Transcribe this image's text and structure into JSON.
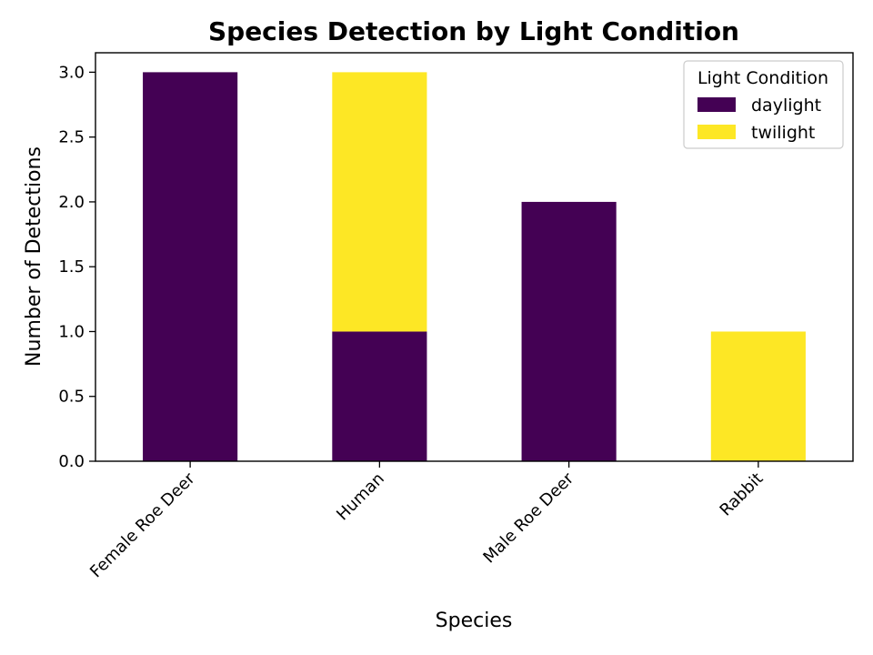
{
  "chart_data": {
    "type": "bar",
    "stacked": true,
    "title": "Species Detection by Light Condition",
    "xlabel": "Species",
    "ylabel": "Number of Detections",
    "categories": [
      "Female Roe Deer",
      "Human",
      "Male Roe Deer",
      "Rabbit"
    ],
    "series": [
      {
        "name": "daylight",
        "values": [
          3,
          1,
          2,
          0
        ],
        "color": "#440154"
      },
      {
        "name": "twilight",
        "values": [
          0,
          2,
          0,
          1
        ],
        "color": "#fde725"
      }
    ],
    "ylim": [
      0,
      3.15
    ],
    "yticks": [
      0.0,
      0.5,
      1.0,
      1.5,
      2.0,
      2.5,
      3.0
    ],
    "ytick_labels": [
      "0.0",
      "0.5",
      "1.0",
      "1.5",
      "2.0",
      "2.5",
      "3.0"
    ],
    "grid": false,
    "legend": {
      "title": "Light Condition",
      "position": "top-right"
    }
  }
}
